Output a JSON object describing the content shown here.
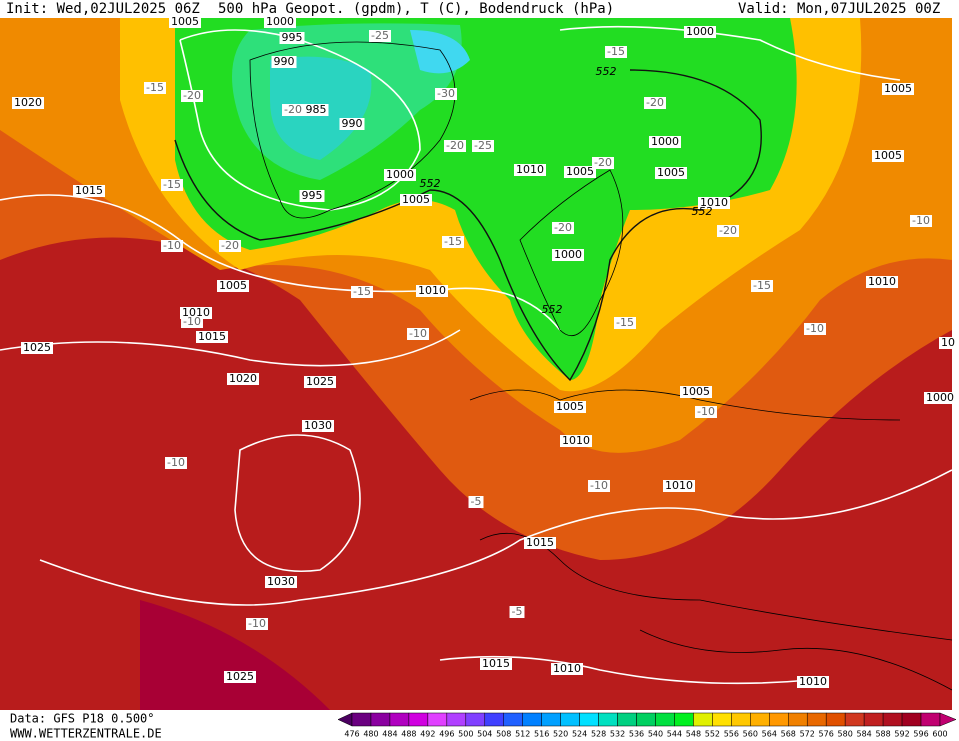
{
  "header": {
    "init": "Init: Wed,02JUL2025 06Z",
    "title": "500 hPa Geopot. (gpdm), T (C), Bodendruck (hPa)",
    "valid": "Valid: Mon,07JUL2025 00Z"
  },
  "footer": {
    "data": "Data: GFS P18 0.500°",
    "site": "WWW.WETTERZENTRALE.DE"
  },
  "isobar_labels": [
    "1005",
    "1000",
    "995",
    "990",
    "985",
    "990",
    "1000",
    "995",
    "1005",
    "1010",
    "1005",
    "1000",
    "1005",
    "1010",
    "1000",
    "1005",
    "1005",
    "1020",
    "1015",
    "1005",
    "1010",
    "1010",
    "1015",
    "1025",
    "1020",
    "1025",
    "1030",
    "1010",
    "1000",
    "1005",
    "1010",
    "1005",
    "1010",
    "1015",
    "1030",
    "1015",
    "1010",
    "1025",
    "1010",
    "1000",
    "10"
  ],
  "temperature_labels": [
    "-25",
    "-15",
    "-15",
    "-20",
    "-20",
    "-30",
    "-20",
    "-25",
    "-20",
    "-20",
    "-15",
    "-20",
    "-10",
    "-15",
    "-20",
    "-20",
    "-10",
    "-15",
    "-15",
    "-15",
    "-10",
    "-10",
    "-10",
    "-10",
    "-10",
    "-10",
    "-5",
    "-10",
    "-5"
  ],
  "geopotential_labels": [
    "552",
    "552",
    "552",
    "552"
  ],
  "legend": {
    "ticks": [
      476,
      480,
      484,
      488,
      492,
      496,
      500,
      504,
      508,
      512,
      516,
      520,
      524,
      528,
      532,
      536,
      540,
      544,
      548,
      552,
      556,
      560,
      564,
      568,
      572,
      576,
      580,
      584,
      588,
      592,
      596,
      600
    ],
    "colors": [
      "#4b0060",
      "#6a0080",
      "#8a00a0",
      "#b000c0",
      "#d000e0",
      "#e040ff",
      "#b040ff",
      "#8040ff",
      "#4040ff",
      "#2060ff",
      "#0080ff",
      "#00a0ff",
      "#00c0ff",
      "#00e0ff",
      "#00e0c0",
      "#00d080",
      "#00d060",
      "#00e040",
      "#00f020",
      "#e0f000",
      "#ffe000",
      "#ffc800",
      "#ffb000",
      "#ff9800",
      "#f08000",
      "#e86800",
      "#e05000",
      "#d03820",
      "#c02020",
      "#b01020",
      "#a00020",
      "#c00070"
    ]
  }
}
